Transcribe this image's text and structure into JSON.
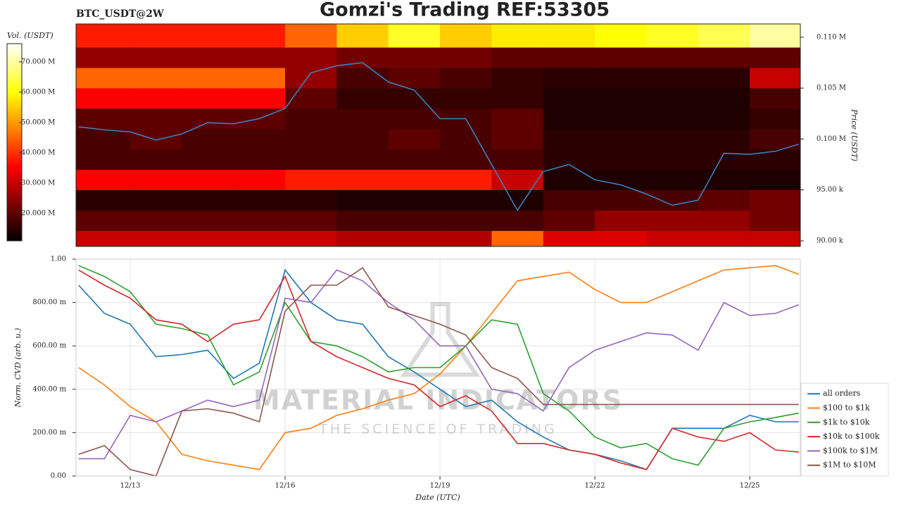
{
  "chart_data": [
    {
      "type": "heatmap",
      "title": "Gomzi's Trading REF:53305",
      "subtitle": "BTC_USDT@2W",
      "colorbar_label": "Vol. (USDT)",
      "y_label": "Price (USDT)",
      "colormap": "hot",
      "x_edges": [
        11.95,
        13,
        14,
        15,
        16,
        17,
        18,
        19,
        20,
        21,
        22,
        23,
        24,
        25,
        25.98
      ],
      "y_edges": [
        89450,
        91000,
        93000,
        95000,
        97000,
        99000,
        101000,
        103000,
        105000,
        107000,
        109000,
        111300
      ],
      "z": [
        [
          30000000,
          30000000,
          30000000,
          30000000,
          30000000,
          28000000,
          28000000,
          28000000,
          45000000,
          32000000,
          32000000,
          30000000,
          30000000,
          30000000
        ],
        [
          20000000,
          20000000,
          20000000,
          20000000,
          20000000,
          18000000,
          18000000,
          18000000,
          18000000,
          20000000,
          25000000,
          25000000,
          25000000,
          22000000
        ],
        [
          15000000,
          15000000,
          15000000,
          15000000,
          15000000,
          14000000,
          14000000,
          14000000,
          14000000,
          18000000,
          18000000,
          18000000,
          20000000,
          22000000
        ],
        [
          35000000,
          35000000,
          35000000,
          35000000,
          38000000,
          38000000,
          38000000,
          38000000,
          30000000,
          14000000,
          14000000,
          14000000,
          14000000,
          14000000
        ],
        [
          18000000,
          18000000,
          18000000,
          18000000,
          18000000,
          18000000,
          18000000,
          18000000,
          18000000,
          15000000,
          15000000,
          15000000,
          15000000,
          15000000
        ],
        [
          18000000,
          20000000,
          18000000,
          18000000,
          18000000,
          18000000,
          20000000,
          18000000,
          20000000,
          15000000,
          15000000,
          15000000,
          15000000,
          18000000
        ],
        [
          20000000,
          20000000,
          20000000,
          20000000,
          18000000,
          18000000,
          18000000,
          18000000,
          20000000,
          14000000,
          14000000,
          14000000,
          14000000,
          16000000
        ],
        [
          35000000,
          35000000,
          35000000,
          35000000,
          20000000,
          16000000,
          16000000,
          16000000,
          16000000,
          14000000,
          14000000,
          14000000,
          14000000,
          18000000
        ],
        [
          45000000,
          45000000,
          45000000,
          45000000,
          25000000,
          18000000,
          20000000,
          18000000,
          16000000,
          15000000,
          15000000,
          15000000,
          15000000,
          30000000
        ],
        [
          25000000,
          25000000,
          25000000,
          25000000,
          25000000,
          22000000,
          22000000,
          22000000,
          20000000,
          20000000,
          20000000,
          20000000,
          20000000,
          20000000
        ],
        [
          38000000,
          38000000,
          38000000,
          38000000,
          45000000,
          55000000,
          62000000,
          55000000,
          58000000,
          58000000,
          60000000,
          62000000,
          65000000,
          70000000
        ]
      ],
      "zlim": [
        11000000,
        76000000
      ],
      "zticks": [
        {
          "value": 20000000,
          "label": "20.000 M"
        },
        {
          "value": 30000000,
          "label": "30.000 M"
        },
        {
          "value": 40000000,
          "label": "40.000 M"
        },
        {
          "value": 50000000,
          "label": "50.000 M"
        },
        {
          "value": 60000000,
          "label": "60.000 M"
        },
        {
          "value": 70000000,
          "label": "70.000 M"
        }
      ],
      "xlim": [
        11.95,
        25.98
      ],
      "ylim": [
        89450,
        111300
      ],
      "yticks": [
        {
          "value": 90000,
          "label": "90.00 k"
        },
        {
          "value": 95000,
          "label": "95.00 k"
        },
        {
          "value": 100000,
          "label": "0.100 M"
        },
        {
          "value": 105000,
          "label": "0.105 M"
        },
        {
          "value": 110000,
          "label": "0.110 M"
        }
      ],
      "x": [
        12,
        12.5,
        13,
        13.5,
        14,
        14.5,
        15,
        15.5,
        16,
        16.5,
        17,
        17.5,
        18,
        18.5,
        19,
        19.5,
        20,
        20.5,
        21,
        21.5,
        22,
        22.5,
        23,
        23.5,
        24,
        24.5,
        25,
        25.5,
        25.95
      ],
      "series": [
        {
          "color": "#3a88c8",
          "values": [
            101200,
            100900,
            100700,
            99900,
            100500,
            101600,
            101500,
            102000,
            103000,
            106500,
            107200,
            107500,
            105600,
            104800,
            102000,
            102000,
            97500,
            93000,
            96800,
            97500,
            96000,
            95500,
            94600,
            93500,
            94000,
            98600,
            98500,
            98800,
            99500
          ]
        }
      ]
    },
    {
      "type": "line",
      "x_label": "Date (UTC)",
      "y_label": "Norm. CVD (arb. u.)",
      "grid": true,
      "legend": "lower right",
      "watermark": [
        "MATERIAL INDICATORS",
        "THE SCIENCE OF TRADING"
      ],
      "xlim": [
        11.95,
        25.98
      ],
      "ylim": [
        0,
        1
      ],
      "xticks": [
        {
          "value": 13,
          "label": "12/13"
        },
        {
          "value": 16,
          "label": "12/16"
        },
        {
          "value": 19,
          "label": "12/19"
        },
        {
          "value": 22,
          "label": "12/22"
        },
        {
          "value": 25,
          "label": "12/25"
        }
      ],
      "yticks": [
        {
          "value": 0,
          "label": "0.00"
        },
        {
          "value": 0.2,
          "label": "200.00 m"
        },
        {
          "value": 0.4,
          "label": "400.00 m"
        },
        {
          "value": 0.6,
          "label": "600.00 m"
        },
        {
          "value": 0.8,
          "label": "800.00 m"
        },
        {
          "value": 1,
          "label": "1.00"
        }
      ],
      "x": [
        12,
        12.5,
        13,
        13.5,
        14,
        14.5,
        15,
        15.5,
        16,
        16.5,
        17,
        17.5,
        18,
        18.5,
        19,
        19.5,
        20,
        20.5,
        21,
        21.5,
        22,
        22.5,
        23,
        23.5,
        24,
        24.5,
        25,
        25.5,
        25.95
      ],
      "series": [
        {
          "name": "all orders",
          "color": "#1f77b4",
          "values": [
            0.88,
            0.75,
            0.7,
            0.55,
            0.56,
            0.58,
            0.45,
            0.52,
            0.95,
            0.8,
            0.72,
            0.7,
            0.55,
            0.48,
            0.4,
            0.32,
            0.35,
            0.25,
            0.18,
            0.12,
            0.1,
            0.07,
            0.03,
            0.22,
            0.22,
            0.22,
            0.28,
            0.25,
            0.25
          ]
        },
        {
          "name": "$100 to $1k",
          "color": "#ff7f0e",
          "values": [
            0.5,
            0.42,
            0.32,
            0.25,
            0.1,
            0.07,
            0.05,
            0.03,
            0.2,
            0.22,
            0.28,
            0.31,
            0.35,
            0.38,
            0.47,
            0.6,
            0.75,
            0.9,
            0.92,
            0.94,
            0.86,
            0.8,
            0.8,
            0.85,
            0.9,
            0.95,
            0.96,
            0.97,
            0.93
          ]
        },
        {
          "name": "$1k to $10k",
          "color": "#2ca02c",
          "values": [
            0.97,
            0.92,
            0.85,
            0.7,
            0.68,
            0.65,
            0.42,
            0.48,
            0.8,
            0.62,
            0.6,
            0.55,
            0.48,
            0.5,
            0.5,
            0.6,
            0.72,
            0.7,
            0.38,
            0.3,
            0.18,
            0.13,
            0.15,
            0.08,
            0.05,
            0.22,
            0.25,
            0.27,
            0.29
          ]
        },
        {
          "name": "$10k to $100k",
          "color": "#d62728",
          "values": [
            0.95,
            0.88,
            0.82,
            0.72,
            0.7,
            0.62,
            0.7,
            0.72,
            0.92,
            0.62,
            0.55,
            0.5,
            0.45,
            0.42,
            0.32,
            0.37,
            0.3,
            0.15,
            0.15,
            0.12,
            0.1,
            0.06,
            0.03,
            0.22,
            0.18,
            0.16,
            0.2,
            0.12,
            0.11
          ]
        },
        {
          "name": "$100k to $1M",
          "color": "#9467bd",
          "values": [
            0.08,
            0.08,
            0.28,
            0.25,
            0.3,
            0.35,
            0.32,
            0.35,
            0.82,
            0.8,
            0.95,
            0.9,
            0.8,
            0.72,
            0.6,
            0.6,
            0.4,
            0.38,
            0.3,
            0.5,
            0.58,
            0.62,
            0.66,
            0.65,
            0.58,
            0.8,
            0.74,
            0.75,
            0.79
          ]
        },
        {
          "name": "$1M to $10M",
          "color": "#8c564b",
          "values": [
            0.1,
            0.14,
            0.03,
            0,
            0.3,
            0.31,
            0.29,
            0.25,
            0.76,
            0.88,
            0.88,
            0.96,
            0.78,
            0.74,
            0.7,
            0.65,
            0.5,
            0.45,
            0.33,
            0.33,
            0.33,
            0.33,
            0.33,
            0.33,
            0.33,
            0.33,
            0.33,
            0.33,
            0.33
          ]
        }
      ]
    }
  ]
}
